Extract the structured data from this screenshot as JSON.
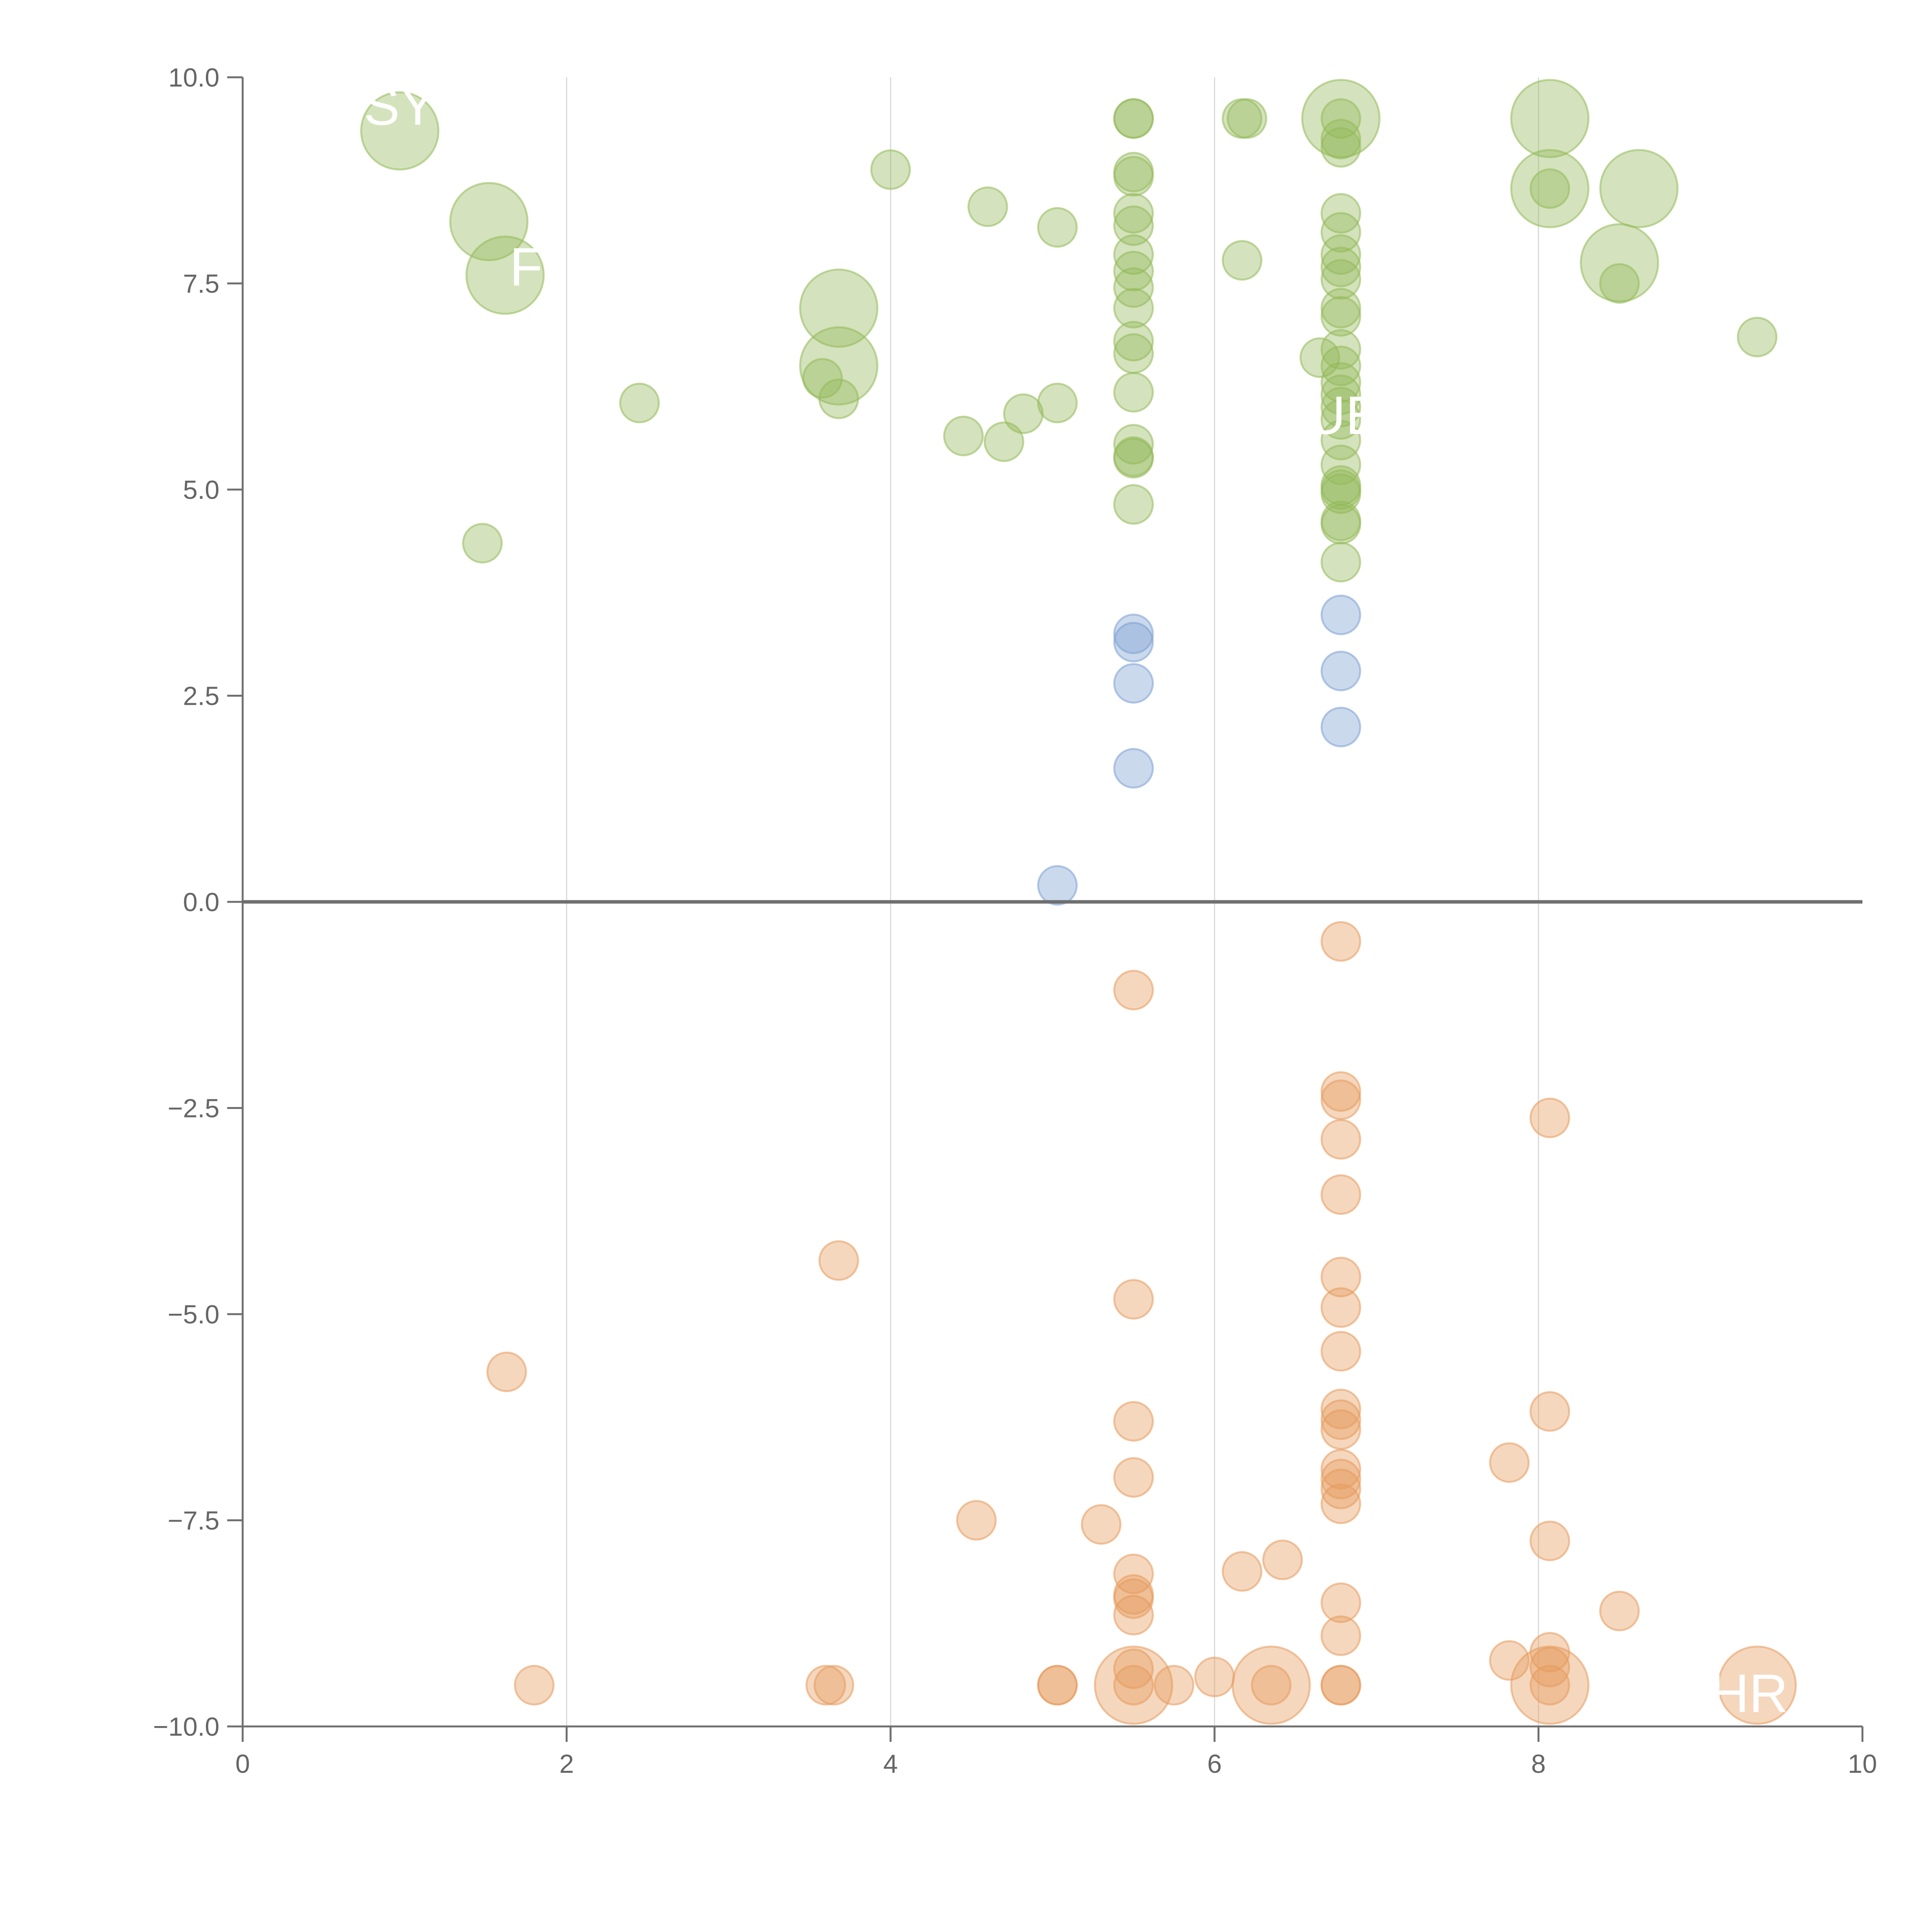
{
  "chart_data": {
    "type": "scatter",
    "title": "",
    "xlabel": "",
    "ylabel": "",
    "xlim": [
      0,
      10
    ],
    "ylim": [
      -10,
      10
    ],
    "x_ticks": [
      0,
      2,
      4,
      6,
      8,
      10
    ],
    "x_tick_labels": [
      "0",
      "2",
      "4",
      "6",
      "8",
      "10"
    ],
    "y_ticks": [
      10,
      7.5,
      5,
      2.5,
      0,
      -2.5,
      -5,
      -7.5,
      -10
    ],
    "y_tick_labels": [
      "10.0",
      "7.5",
      "5.0",
      "2.5",
      "0.0",
      "−2.5",
      "−5.0",
      "−7.5",
      "−10.0"
    ],
    "vertical_grid": true,
    "horizontal_grid": false,
    "zero_line": true,
    "colors": {
      "positive": "#93b95a",
      "neutral": "#7da0d2",
      "negative": "#e59b5c",
      "axis": "#6f6f6f",
      "grid": "#d9d9d9"
    },
    "series": [
      {
        "color": "#93b95a",
        "points": [
          {
            "x": 0.97,
            "y": 9.35,
            "size": 2
          },
          {
            "x": 1.52,
            "y": 8.25,
            "size": 2
          },
          {
            "x": 1.62,
            "y": 7.6,
            "size": 2
          },
          {
            "x": 1.48,
            "y": 4.35,
            "size": 1
          },
          {
            "x": 2.45,
            "y": 6.05,
            "size": 1
          },
          {
            "x": 3.58,
            "y": 6.35,
            "size": 1
          },
          {
            "x": 3.68,
            "y": 7.2,
            "size": 2
          },
          {
            "x": 3.68,
            "y": 6.5,
            "size": 2
          },
          {
            "x": 3.68,
            "y": 6.1,
            "size": 1
          },
          {
            "x": 4.0,
            "y": 8.88,
            "size": 1
          },
          {
            "x": 4.45,
            "y": 5.65,
            "size": 1
          },
          {
            "x": 4.6,
            "y": 8.43,
            "size": 1
          },
          {
            "x": 4.7,
            "y": 5.58,
            "size": 1
          },
          {
            "x": 4.82,
            "y": 5.92,
            "size": 1
          },
          {
            "x": 5.03,
            "y": 8.18,
            "size": 1
          },
          {
            "x": 5.03,
            "y": 6.05,
            "size": 1
          },
          {
            "x": 5.5,
            "y": 9.5,
            "size": 1
          },
          {
            "x": 5.5,
            "y": 9.5,
            "size": 1
          },
          {
            "x": 5.5,
            "y": 8.85,
            "size": 1
          },
          {
            "x": 5.5,
            "y": 8.8,
            "size": 1
          },
          {
            "x": 5.5,
            "y": 8.35,
            "size": 1
          },
          {
            "x": 5.5,
            "y": 8.2,
            "size": 1
          },
          {
            "x": 5.5,
            "y": 7.85,
            "size": 1
          },
          {
            "x": 5.5,
            "y": 7.65,
            "size": 1
          },
          {
            "x": 5.5,
            "y": 7.45,
            "size": 1
          },
          {
            "x": 5.5,
            "y": 7.2,
            "size": 1
          },
          {
            "x": 5.5,
            "y": 6.8,
            "size": 1
          },
          {
            "x": 5.5,
            "y": 6.65,
            "size": 1
          },
          {
            "x": 5.5,
            "y": 6.18,
            "size": 1
          },
          {
            "x": 5.5,
            "y": 5.55,
            "size": 1
          },
          {
            "x": 5.5,
            "y": 5.4,
            "size": 1
          },
          {
            "x": 5.5,
            "y": 5.38,
            "size": 1
          },
          {
            "x": 5.5,
            "y": 4.82,
            "size": 1
          },
          {
            "x": 6.17,
            "y": 9.5,
            "size": 1
          },
          {
            "x": 6.2,
            "y": 9.5,
            "size": 1
          },
          {
            "x": 6.17,
            "y": 7.78,
            "size": 1
          },
          {
            "x": 6.65,
            "y": 6.6,
            "size": 1
          },
          {
            "x": 6.78,
            "y": 9.5,
            "size": 2
          },
          {
            "x": 6.78,
            "y": 9.5,
            "size": 1
          },
          {
            "x": 6.78,
            "y": 9.25,
            "size": 1
          },
          {
            "x": 6.78,
            "y": 9.15,
            "size": 1
          },
          {
            "x": 6.78,
            "y": 8.35,
            "size": 1
          },
          {
            "x": 6.78,
            "y": 8.12,
            "size": 1
          },
          {
            "x": 6.78,
            "y": 7.85,
            "size": 1
          },
          {
            "x": 6.78,
            "y": 7.7,
            "size": 1
          },
          {
            "x": 6.78,
            "y": 7.55,
            "size": 1
          },
          {
            "x": 6.78,
            "y": 7.2,
            "size": 1
          },
          {
            "x": 6.78,
            "y": 7.1,
            "size": 1
          },
          {
            "x": 6.78,
            "y": 6.7,
            "size": 1
          },
          {
            "x": 6.78,
            "y": 6.5,
            "size": 1
          },
          {
            "x": 6.78,
            "y": 6.3,
            "size": 1
          },
          {
            "x": 6.78,
            "y": 6.15,
            "size": 1
          },
          {
            "x": 6.78,
            "y": 6.0,
            "size": 1
          },
          {
            "x": 6.78,
            "y": 5.85,
            "size": 1
          },
          {
            "x": 6.78,
            "y": 5.6,
            "size": 1
          },
          {
            "x": 6.78,
            "y": 5.3,
            "size": 1
          },
          {
            "x": 6.78,
            "y": 5.05,
            "size": 1
          },
          {
            "x": 6.78,
            "y": 5.0,
            "size": 1
          },
          {
            "x": 6.78,
            "y": 4.95,
            "size": 1
          },
          {
            "x": 6.78,
            "y": 4.62,
            "size": 1
          },
          {
            "x": 6.78,
            "y": 4.58,
            "size": 1
          },
          {
            "x": 6.78,
            "y": 4.12,
            "size": 1
          },
          {
            "x": 8.07,
            "y": 9.5,
            "size": 2
          },
          {
            "x": 8.07,
            "y": 8.65,
            "size": 2
          },
          {
            "x": 8.07,
            "y": 8.65,
            "size": 1
          },
          {
            "x": 8.5,
            "y": 7.75,
            "size": 2
          },
          {
            "x": 8.5,
            "y": 7.5,
            "size": 1
          },
          {
            "x": 8.62,
            "y": 8.65,
            "size": 2
          },
          {
            "x": 9.35,
            "y": 6.85,
            "size": 1
          }
        ]
      },
      {
        "color": "#7da0d2",
        "points": [
          {
            "x": 5.03,
            "y": 0.2,
            "size": 1
          },
          {
            "x": 5.5,
            "y": 3.25,
            "size": 1
          },
          {
            "x": 5.5,
            "y": 3.15,
            "size": 1
          },
          {
            "x": 5.5,
            "y": 2.65,
            "size": 1
          },
          {
            "x": 5.5,
            "y": 1.62,
            "size": 1
          },
          {
            "x": 6.78,
            "y": 3.48,
            "size": 1
          },
          {
            "x": 6.78,
            "y": 2.8,
            "size": 1
          },
          {
            "x": 6.78,
            "y": 2.12,
            "size": 1
          }
        ]
      },
      {
        "color": "#e59b5c",
        "points": [
          {
            "x": 1.63,
            "y": -5.7,
            "size": 1
          },
          {
            "x": 1.8,
            "y": -9.5,
            "size": 1
          },
          {
            "x": 3.6,
            "y": -9.5,
            "size": 1
          },
          {
            "x": 3.65,
            "y": -9.5,
            "size": 1
          },
          {
            "x": 3.68,
            "y": -4.35,
            "size": 1
          },
          {
            "x": 4.53,
            "y": -7.5,
            "size": 1
          },
          {
            "x": 5.03,
            "y": -9.5,
            "size": 1
          },
          {
            "x": 5.03,
            "y": -9.5,
            "size": 1
          },
          {
            "x": 5.3,
            "y": -7.55,
            "size": 1
          },
          {
            "x": 5.5,
            "y": -1.07,
            "size": 1
          },
          {
            "x": 5.5,
            "y": -4.82,
            "size": 1
          },
          {
            "x": 5.5,
            "y": -6.3,
            "size": 1
          },
          {
            "x": 5.5,
            "y": -6.98,
            "size": 1
          },
          {
            "x": 5.5,
            "y": -8.15,
            "size": 1
          },
          {
            "x": 5.5,
            "y": -8.4,
            "size": 1
          },
          {
            "x": 5.5,
            "y": -8.45,
            "size": 1
          },
          {
            "x": 5.5,
            "y": -8.65,
            "size": 1
          },
          {
            "x": 5.5,
            "y": -9.3,
            "size": 1
          },
          {
            "x": 5.5,
            "y": -9.5,
            "size": 2
          },
          {
            "x": 5.5,
            "y": -9.5,
            "size": 1
          },
          {
            "x": 5.75,
            "y": -9.5,
            "size": 1
          },
          {
            "x": 6.0,
            "y": -9.4,
            "size": 1
          },
          {
            "x": 6.17,
            "y": -8.12,
            "size": 1
          },
          {
            "x": 6.35,
            "y": -9.5,
            "size": 2
          },
          {
            "x": 6.35,
            "y": -9.5,
            "size": 1
          },
          {
            "x": 6.42,
            "y": -7.98,
            "size": 1
          },
          {
            "x": 6.78,
            "y": -0.48,
            "size": 1
          },
          {
            "x": 6.78,
            "y": -2.3,
            "size": 1
          },
          {
            "x": 6.78,
            "y": -2.4,
            "size": 1
          },
          {
            "x": 6.78,
            "y": -2.88,
            "size": 1
          },
          {
            "x": 6.78,
            "y": -3.55,
            "size": 1
          },
          {
            "x": 6.78,
            "y": -4.55,
            "size": 1
          },
          {
            "x": 6.78,
            "y": -4.92,
            "size": 1
          },
          {
            "x": 6.78,
            "y": -5.45,
            "size": 1
          },
          {
            "x": 6.78,
            "y": -6.15,
            "size": 1
          },
          {
            "x": 6.78,
            "y": -6.28,
            "size": 1
          },
          {
            "x": 6.78,
            "y": -6.4,
            "size": 1
          },
          {
            "x": 6.78,
            "y": -6.88,
            "size": 1
          },
          {
            "x": 6.78,
            "y": -7.0,
            "size": 1
          },
          {
            "x": 6.78,
            "y": -7.12,
            "size": 1
          },
          {
            "x": 6.78,
            "y": -7.3,
            "size": 1
          },
          {
            "x": 6.78,
            "y": -8.5,
            "size": 1
          },
          {
            "x": 6.78,
            "y": -8.9,
            "size": 1
          },
          {
            "x": 6.78,
            "y": -9.5,
            "size": 1
          },
          {
            "x": 6.78,
            "y": -9.5,
            "size": 1
          },
          {
            "x": 7.82,
            "y": -6.8,
            "size": 1
          },
          {
            "x": 7.82,
            "y": -9.2,
            "size": 1
          },
          {
            "x": 8.07,
            "y": -2.62,
            "size": 1
          },
          {
            "x": 8.07,
            "y": -6.18,
            "size": 1
          },
          {
            "x": 8.07,
            "y": -7.75,
            "size": 1
          },
          {
            "x": 8.07,
            "y": -9.1,
            "size": 1
          },
          {
            "x": 8.07,
            "y": -9.28,
            "size": 1
          },
          {
            "x": 8.07,
            "y": -9.5,
            "size": 2
          },
          {
            "x": 8.07,
            "y": -9.5,
            "size": 1
          },
          {
            "x": 8.5,
            "y": -8.6,
            "size": 1
          },
          {
            "x": 9.35,
            "y": -9.5,
            "size": 2
          }
        ]
      }
    ],
    "point_labels": [
      {
        "text": "SY",
        "x": 0.97,
        "y": 9.65
      },
      {
        "text": "F",
        "x": 1.75,
        "y": 7.7
      },
      {
        "text": "UE",
        "x": 6.8,
        "y": 5.9
      },
      {
        "text": "HR",
        "x": 9.3,
        "y": -9.6
      }
    ]
  }
}
